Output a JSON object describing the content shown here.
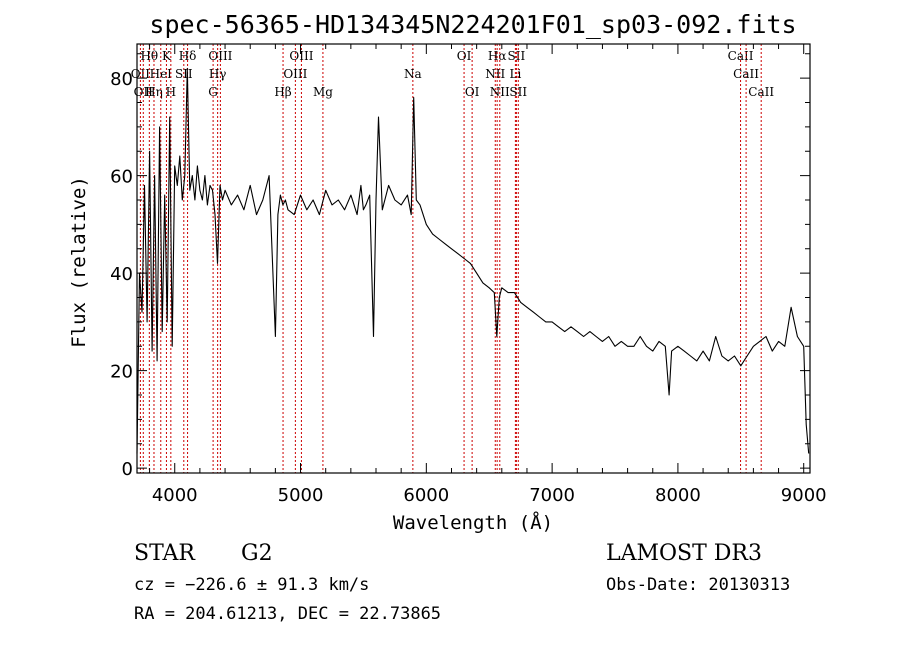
{
  "chart_data": {
    "type": "line",
    "title": "spec-56365-HD134345N224201F01_sp03-092.fits",
    "xlabel": "Wavelength (Å)",
    "ylabel": "Flux (relative)",
    "xlim": [
      3700,
      9050
    ],
    "ylim": [
      -1,
      87
    ],
    "xticks": [
      4000,
      5000,
      6000,
      7000,
      8000,
      9000
    ],
    "yticks": [
      0,
      20,
      40,
      60,
      80
    ],
    "spectral_lines": [
      {
        "wave": 3727,
        "label": "OII",
        "tier": 1
      },
      {
        "wave": 3750,
        "label": "OII",
        "tier": 2
      },
      {
        "wave": 3798,
        "label": "Hθ",
        "tier": 0
      },
      {
        "wave": 3835,
        "label": "Hη",
        "tier": 2
      },
      {
        "wave": 3889,
        "label": "HeI",
        "tier": 1
      },
      {
        "wave": 3934,
        "label": "K",
        "tier": 0
      },
      {
        "wave": 3969,
        "label": "H",
        "tier": 2
      },
      {
        "wave": 4072,
        "label": "SII",
        "tier": 1
      },
      {
        "wave": 4102,
        "label": "Hδ",
        "tier": 0
      },
      {
        "wave": 4305,
        "label": "G",
        "tier": 2
      },
      {
        "wave": 4341,
        "label": "Hγ",
        "tier": 1
      },
      {
        "wave": 4363,
        "label": "OIII",
        "tier": 0
      },
      {
        "wave": 4861,
        "label": "Hβ",
        "tier": 2
      },
      {
        "wave": 4959,
        "label": "OIII",
        "tier": 1
      },
      {
        "wave": 5007,
        "label": "OIII",
        "tier": 0
      },
      {
        "wave": 5178,
        "label": "Mg",
        "tier": 2
      },
      {
        "wave": 5893,
        "label": "Na",
        "tier": 1
      },
      {
        "wave": 6300,
        "label": "OI",
        "tier": 0
      },
      {
        "wave": 6364,
        "label": "OI",
        "tier": 2
      },
      {
        "wave": 6548,
        "label": "NII",
        "tier": 1
      },
      {
        "wave": 6563,
        "label": "Hα",
        "tier": 0
      },
      {
        "wave": 6584,
        "label": "NII",
        "tier": 2
      },
      {
        "wave": 6708,
        "label": "Li",
        "tier": 1
      },
      {
        "wave": 6716,
        "label": "SII",
        "tier": 0
      },
      {
        "wave": 6731,
        "label": "SII",
        "tier": 2
      },
      {
        "wave": 8498,
        "label": "CaII",
        "tier": 0
      },
      {
        "wave": 8542,
        "label": "CaII",
        "tier": 1
      },
      {
        "wave": 8662,
        "label": "CaII",
        "tier": 2
      }
    ],
    "series": [
      {
        "name": "flux",
        "x": [
          3700,
          3720,
          3740,
          3760,
          3780,
          3800,
          3820,
          3840,
          3860,
          3880,
          3900,
          3920,
          3940,
          3960,
          3980,
          4000,
          4020,
          4040,
          4060,
          4080,
          4100,
          4120,
          4140,
          4160,
          4180,
          4200,
          4220,
          4240,
          4260,
          4280,
          4300,
          4320,
          4340,
          4360,
          4380,
          4400,
          4450,
          4500,
          4550,
          4600,
          4650,
          4700,
          4750,
          4800,
          4820,
          4840,
          4860,
          4880,
          4900,
          4950,
          5000,
          5050,
          5100,
          5150,
          5200,
          5250,
          5300,
          5350,
          5400,
          5450,
          5480,
          5500,
          5520,
          5550,
          5580,
          5600,
          5620,
          5650,
          5700,
          5750,
          5800,
          5850,
          5880,
          5900,
          5920,
          5950,
          6000,
          6050,
          6100,
          6150,
          6200,
          6250,
          6300,
          6350,
          6400,
          6450,
          6500,
          6540,
          6560,
          6580,
          6600,
          6650,
          6700,
          6750,
          6800,
          6850,
          6900,
          6950,
          7000,
          7050,
          7100,
          7150,
          7200,
          7250,
          7300,
          7350,
          7400,
          7450,
          7500,
          7550,
          7600,
          7650,
          7700,
          7750,
          7800,
          7850,
          7900,
          7930,
          7950,
          8000,
          8050,
          8100,
          8150,
          8200,
          8250,
          8300,
          8350,
          8400,
          8450,
          8500,
          8550,
          8600,
          8650,
          8700,
          8750,
          8800,
          8850,
          8900,
          8950,
          9000,
          9020,
          9040
        ],
        "values": [
          3,
          40,
          32,
          58,
          30,
          65,
          24,
          60,
          22,
          70,
          28,
          56,
          30,
          72,
          25,
          62,
          58,
          64,
          55,
          60,
          82,
          57,
          60,
          55,
          62,
          57,
          55,
          60,
          54,
          58,
          57,
          52,
          42,
          58,
          55,
          57,
          54,
          56,
          53,
          58,
          52,
          55,
          60,
          27,
          52,
          56,
          54,
          55,
          53,
          52,
          56,
          53,
          55,
          52,
          57,
          54,
          55,
          53,
          56,
          52,
          58,
          53,
          54,
          56,
          27,
          55,
          72,
          53,
          58,
          55,
          54,
          56,
          52,
          76,
          55,
          54,
          50,
          48,
          47,
          46,
          45,
          44,
          43,
          42,
          40,
          38,
          37,
          36,
          27,
          35,
          37,
          36,
          36,
          34,
          33,
          32,
          31,
          30,
          30,
          29,
          28,
          29,
          28,
          27,
          28,
          27,
          26,
          27,
          25,
          26,
          25,
          25,
          27,
          25,
          24,
          26,
          25,
          15,
          24,
          25,
          24,
          23,
          22,
          24,
          22,
          27,
          23,
          22,
          23,
          21,
          23,
          25,
          26,
          27,
          24,
          26,
          25,
          33,
          27,
          25,
          9,
          3
        ]
      }
    ]
  },
  "info": {
    "obj_class": "STAR",
    "subclass": "G2",
    "survey": "LAMOST DR3",
    "cz_text": "cz = −226.6 ± 91.3 km/s",
    "obs_date": "Obs-Date: 20130313",
    "radec_text": "RA = 204.61213, DEC =  22.73865"
  }
}
